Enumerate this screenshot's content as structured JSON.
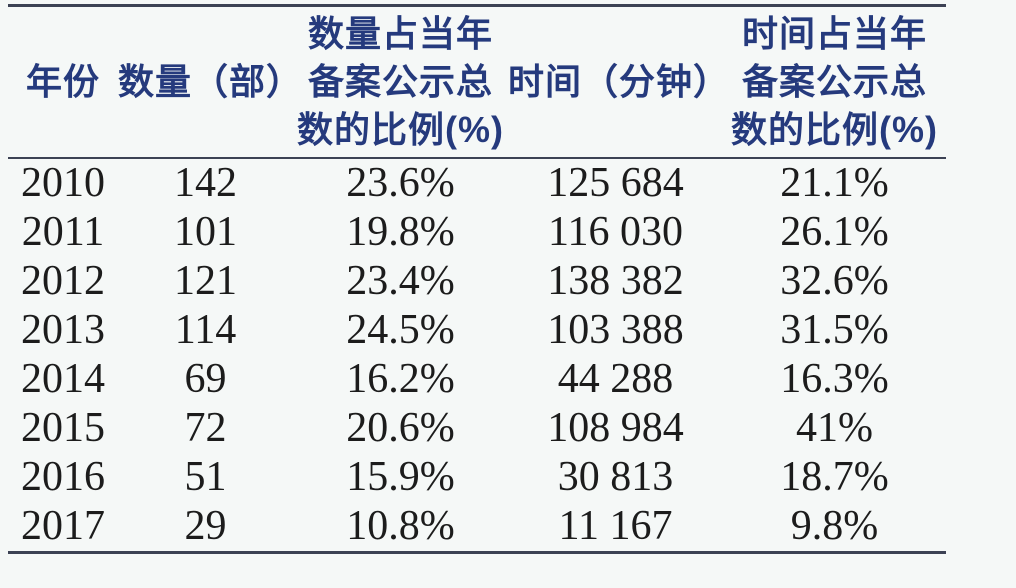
{
  "colors": {
    "background": "#f5f8f7",
    "header_text": "#253a7d",
    "body_text": "#1c1c1c",
    "rule": "#3c4254"
  },
  "table": {
    "headers": [
      {
        "label": "年份"
      },
      {
        "label": "数量（部）"
      },
      {
        "label": "数量占当年\n备案公示总\n数的比例(%)"
      },
      {
        "label": "时间（分钟）"
      },
      {
        "label": "时间占当年\n备案公示总\n数的比例(%)"
      }
    ]
  },
  "chart_data": {
    "type": "table",
    "columns": [
      "年份",
      "数量（部）",
      "数量占当年备案公示总数的比例(%)",
      "时间（分钟）",
      "时间占当年备案公示总数的比例(%)"
    ],
    "rows": [
      [
        "2010",
        "142",
        "23.6%",
        "125 684",
        "21.1%"
      ],
      [
        "2011",
        "101",
        "19.8%",
        "116 030",
        "26.1%"
      ],
      [
        "2012",
        "121",
        "23.4%",
        "138 382",
        "32.6%"
      ],
      [
        "2013",
        "114",
        "24.5%",
        "103 388",
        "31.5%"
      ],
      [
        "2014",
        "69",
        "16.2%",
        "44 288",
        "16.3%"
      ],
      [
        "2015",
        "72",
        "20.6%",
        "108 984",
        "41%"
      ],
      [
        "2016",
        "51",
        "15.9%",
        "30 813",
        "18.7%"
      ],
      [
        "2017",
        "29",
        "10.8%",
        "11 167",
        "9.8%"
      ]
    ]
  }
}
